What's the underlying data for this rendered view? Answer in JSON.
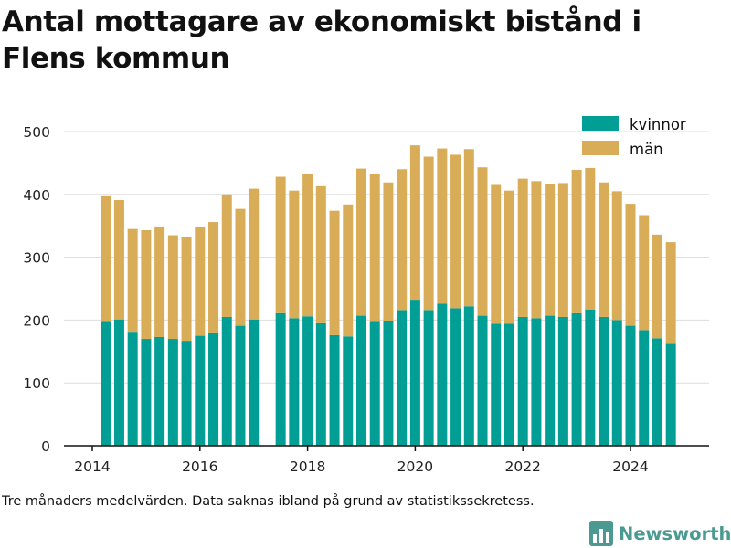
{
  "title": "Antal mottagare av ekonomiskt bistånd i Flens kommun",
  "caption": "Tre månaders medelvärden. Data saknas ibland på grund av statistikssekretess.",
  "brand": {
    "name": "Newsworthy",
    "icon": "bar-chart-logo-icon",
    "color": "#4a9a92"
  },
  "colors": {
    "kvinnor": "#009e94",
    "man": "#d9ad57",
    "grid": "#dddddd",
    "axis": "#111111"
  },
  "chart_data": {
    "type": "bar",
    "stacked": true,
    "x_axis": {
      "type": "date",
      "ticks": [
        "2014",
        "2016",
        "2018",
        "2020",
        "2022",
        "2024"
      ]
    },
    "ylim": [
      0,
      500
    ],
    "yticks": [
      0,
      100,
      200,
      300,
      400,
      500
    ],
    "grid": "horizontal",
    "legend_position": "top-right",
    "x": [
      "2014-04",
      "2014-07",
      "2014-10",
      "2015-01",
      "2015-04",
      "2015-07",
      "2015-10",
      "2016-01",
      "2016-04",
      "2016-07",
      "2016-10",
      "2017-01",
      "2017-07",
      "2017-10",
      "2018-01",
      "2018-04",
      "2018-07",
      "2018-10",
      "2019-01",
      "2019-04",
      "2019-07",
      "2019-10",
      "2020-01",
      "2020-04",
      "2020-07",
      "2020-10",
      "2021-01",
      "2021-04",
      "2021-07",
      "2021-10",
      "2022-01",
      "2022-04",
      "2022-07",
      "2022-10",
      "2023-01",
      "2023-04",
      "2023-07",
      "2023-10",
      "2024-01",
      "2024-04",
      "2024-07",
      "2024-10"
    ],
    "series": [
      {
        "name": "kvinnor",
        "values": [
          197,
          201,
          180,
          170,
          173,
          170,
          167,
          175,
          179,
          205,
          191,
          201,
          211,
          203,
          206,
          195,
          176,
          174,
          207,
          197,
          199,
          216,
          231,
          216,
          226,
          219,
          222,
          207,
          194,
          194,
          205,
          203,
          207,
          205,
          211,
          217,
          205,
          200,
          191,
          184,
          171,
          162
        ]
      },
      {
        "name": "män",
        "values": [
          200,
          190,
          165,
          173,
          176,
          165,
          165,
          173,
          177,
          195,
          186,
          208,
          217,
          203,
          227,
          218,
          198,
          210,
          234,
          235,
          220,
          224,
          247,
          244,
          247,
          244,
          250,
          236,
          221,
          212,
          220,
          218,
          209,
          213,
          228,
          225,
          214,
          205,
          194,
          183,
          165,
          162
        ]
      }
    ]
  }
}
